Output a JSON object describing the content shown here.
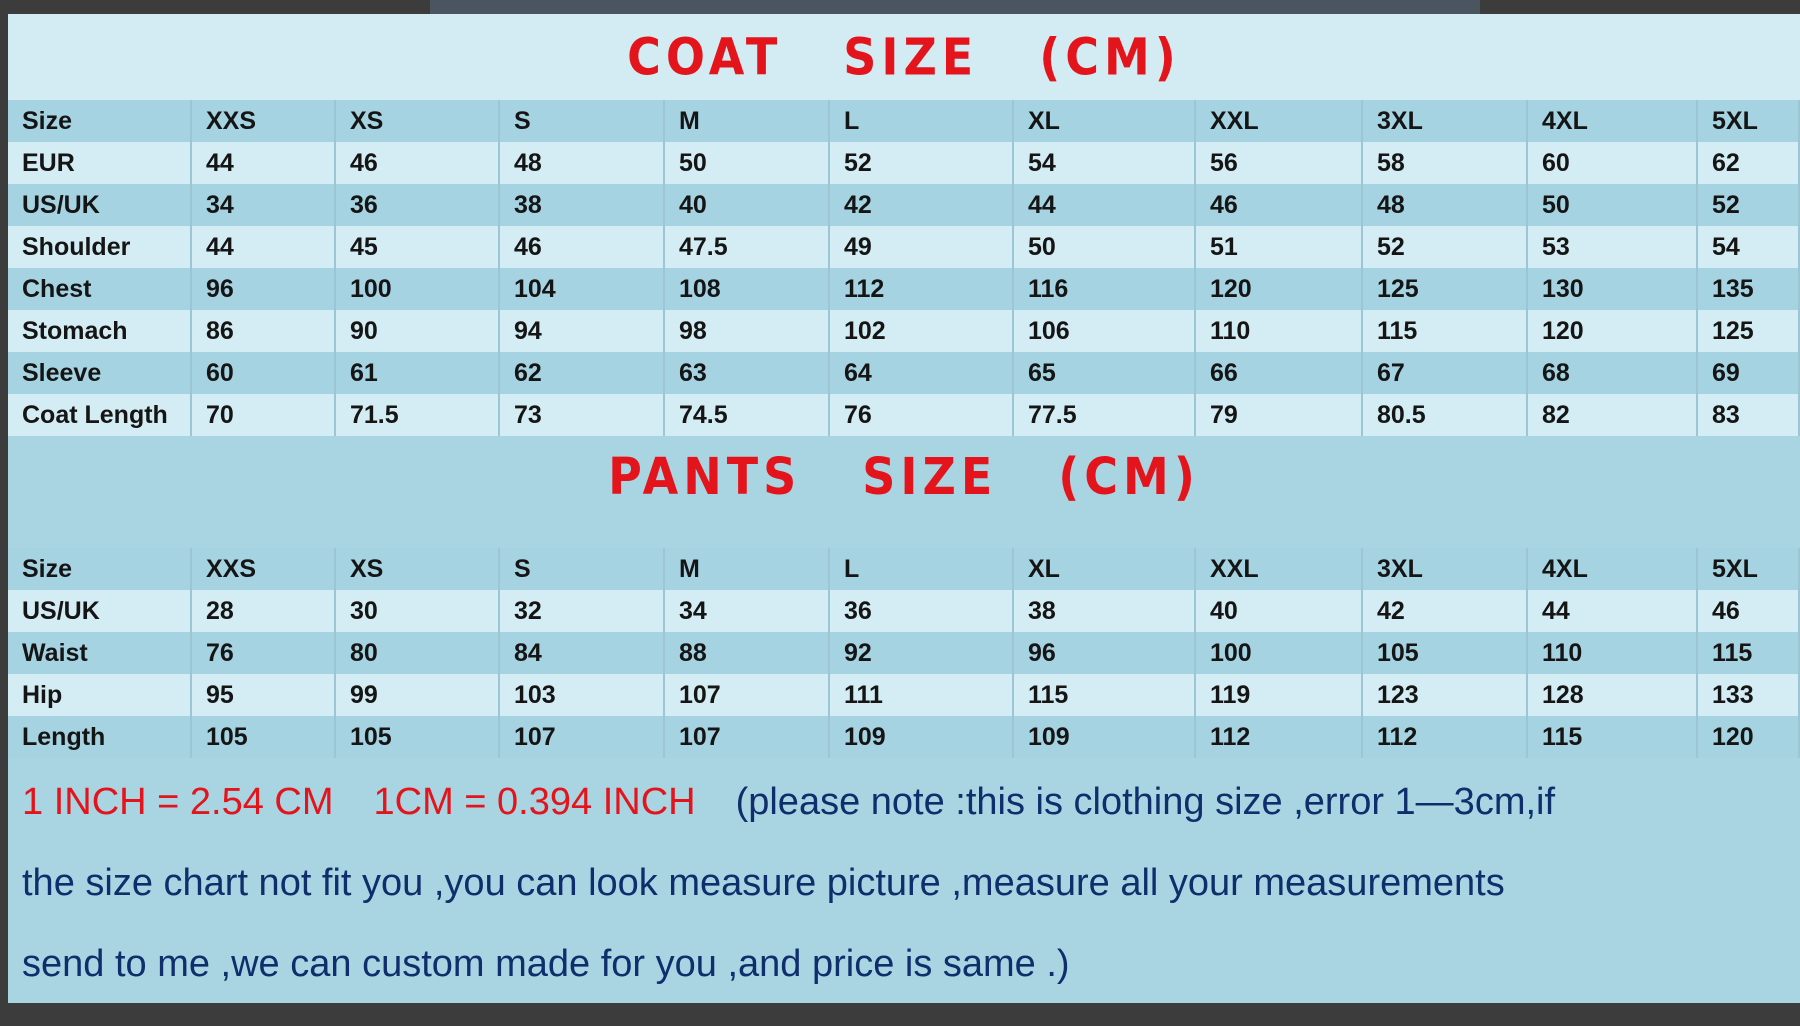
{
  "coat": {
    "title": "COAT   SIZE   (CM)",
    "header": [
      "Size",
      "XXS",
      "XS",
      "S",
      "M",
      "L",
      "XL",
      "XXL",
      "3XL",
      "4XL",
      "5XL"
    ],
    "rows": [
      [
        "EUR",
        "44",
        "46",
        "48",
        "50",
        "52",
        "54",
        "56",
        "58",
        "60",
        "62"
      ],
      [
        "US/UK",
        "34",
        "36",
        "38",
        "40",
        "42",
        "44",
        "46",
        "48",
        "50",
        "52"
      ],
      [
        "Shoulder",
        "44",
        "45",
        "46",
        "47.5",
        "49",
        "50",
        "51",
        "52",
        "53",
        "54"
      ],
      [
        "Chest",
        "96",
        "100",
        "104",
        "108",
        "112",
        "116",
        "120",
        "125",
        "130",
        "135"
      ],
      [
        "Stomach",
        "86",
        "90",
        "94",
        "98",
        "102",
        "106",
        "110",
        "115",
        "120",
        "125"
      ],
      [
        "Sleeve",
        "60",
        "61",
        "62",
        "63",
        "64",
        "65",
        "66",
        "67",
        "68",
        "69"
      ],
      [
        "Coat Length",
        "70",
        "71.5",
        "73",
        "74.5",
        "76",
        "77.5",
        "79",
        "80.5",
        "82",
        "83"
      ]
    ]
  },
  "pants": {
    "title": "PANTS   SIZE   (CM)",
    "header": [
      "Size",
      "XXS",
      "XS",
      "S",
      "M",
      "L",
      "XL",
      "XXL",
      "3XL",
      "4XL",
      "5XL"
    ],
    "rows": [
      [
        "US/UK",
        "28",
        "30",
        "32",
        "34",
        "36",
        "38",
        "40",
        "42",
        "44",
        "46"
      ],
      [
        "Waist",
        "76",
        "80",
        "84",
        "88",
        "92",
        "96",
        "100",
        "105",
        "110",
        "115"
      ],
      [
        "Hip",
        "95",
        "99",
        "103",
        "107",
        "111",
        "115",
        "119",
        "123",
        "128",
        "133"
      ],
      [
        "Length",
        "105",
        "105",
        "107",
        "107",
        "109",
        "109",
        "112",
        "112",
        "115",
        "120"
      ]
    ]
  },
  "notes": {
    "conversion_inch": "1 INCH = 2.54 CM",
    "conversion_cm": "1CM = 0.394 INCH",
    "line1": "(please note :this is clothing size ,error 1—3cm,if",
    "line2": "the size chart not fit you ,you can look measure picture ,measure all your measurements",
    "line3": "send to me ,we can custom made for you ,and price is same .)"
  },
  "colors": {
    "title_red": "#e3141b",
    "note_blue": "#0e2f6b",
    "row_dark": "#a6d3e2",
    "row_light": "#d4ecf3"
  }
}
